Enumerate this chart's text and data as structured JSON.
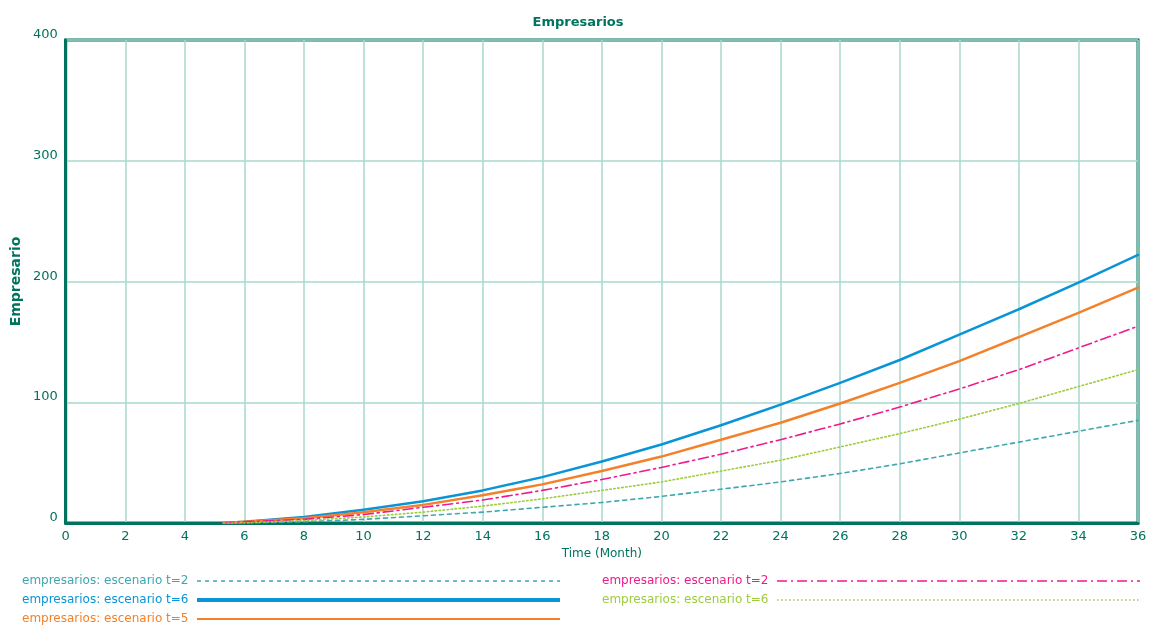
{
  "chart_data": {
    "type": "line",
    "title": "Empresarios",
    "xlabel": "Time (Month)",
    "ylabel": "Empresario",
    "x": [
      5.3,
      6,
      8,
      10,
      12,
      14,
      16,
      18,
      20,
      22,
      24,
      26,
      28,
      30,
      32,
      34,
      36
    ],
    "series": [
      {
        "name": "empresarios: escenario t=2",
        "color": "#3fa7b0",
        "line_style": "dashed",
        "values": [
          0,
          0,
          1,
          3,
          6,
          9,
          13,
          17,
          22,
          28,
          34,
          41,
          49,
          58,
          67,
          76,
          85
        ]
      },
      {
        "name": "empresarios: escenario t=6",
        "color": "#0994d8",
        "line_style": "solid",
        "values": [
          0,
          1,
          5,
          11,
          18,
          27,
          38,
          51,
          65,
          81,
          98,
          116,
          135,
          156,
          177,
          199,
          222
        ]
      },
      {
        "name": "empresarios: escenario t=5",
        "color": "#f4812a",
        "line_style": "solid",
        "values": [
          0,
          1,
          4,
          9,
          15,
          23,
          32,
          43,
          55,
          69,
          83,
          99,
          116,
          134,
          154,
          174,
          195
        ]
      },
      {
        "name": "empresarios: escenario t=2",
        "color": "#ee1b8c",
        "line_style": "dashdot",
        "values": [
          0,
          1,
          3,
          7,
          13,
          19,
          27,
          36,
          46,
          57,
          69,
          82,
          96,
          111,
          127,
          145,
          163
        ]
      },
      {
        "name": "empresarios: escenario t=6",
        "color": "#9ccc3c",
        "line_style": "dotted",
        "values": [
          0,
          0,
          2,
          5,
          9,
          14,
          20,
          27,
          34,
          43,
          52,
          63,
          74,
          86,
          99,
          113,
          127
        ]
      }
    ],
    "xlim": [
      0,
      36
    ],
    "xticks": [
      0,
      2,
      4,
      6,
      8,
      10,
      12,
      14,
      16,
      18,
      20,
      22,
      24,
      26,
      28,
      30,
      32,
      34,
      36
    ],
    "ylim": [
      0,
      400
    ],
    "yticks": [
      0,
      100,
      200,
      300,
      400
    ],
    "grid": true,
    "legend": "bottom",
    "marker": "none"
  }
}
